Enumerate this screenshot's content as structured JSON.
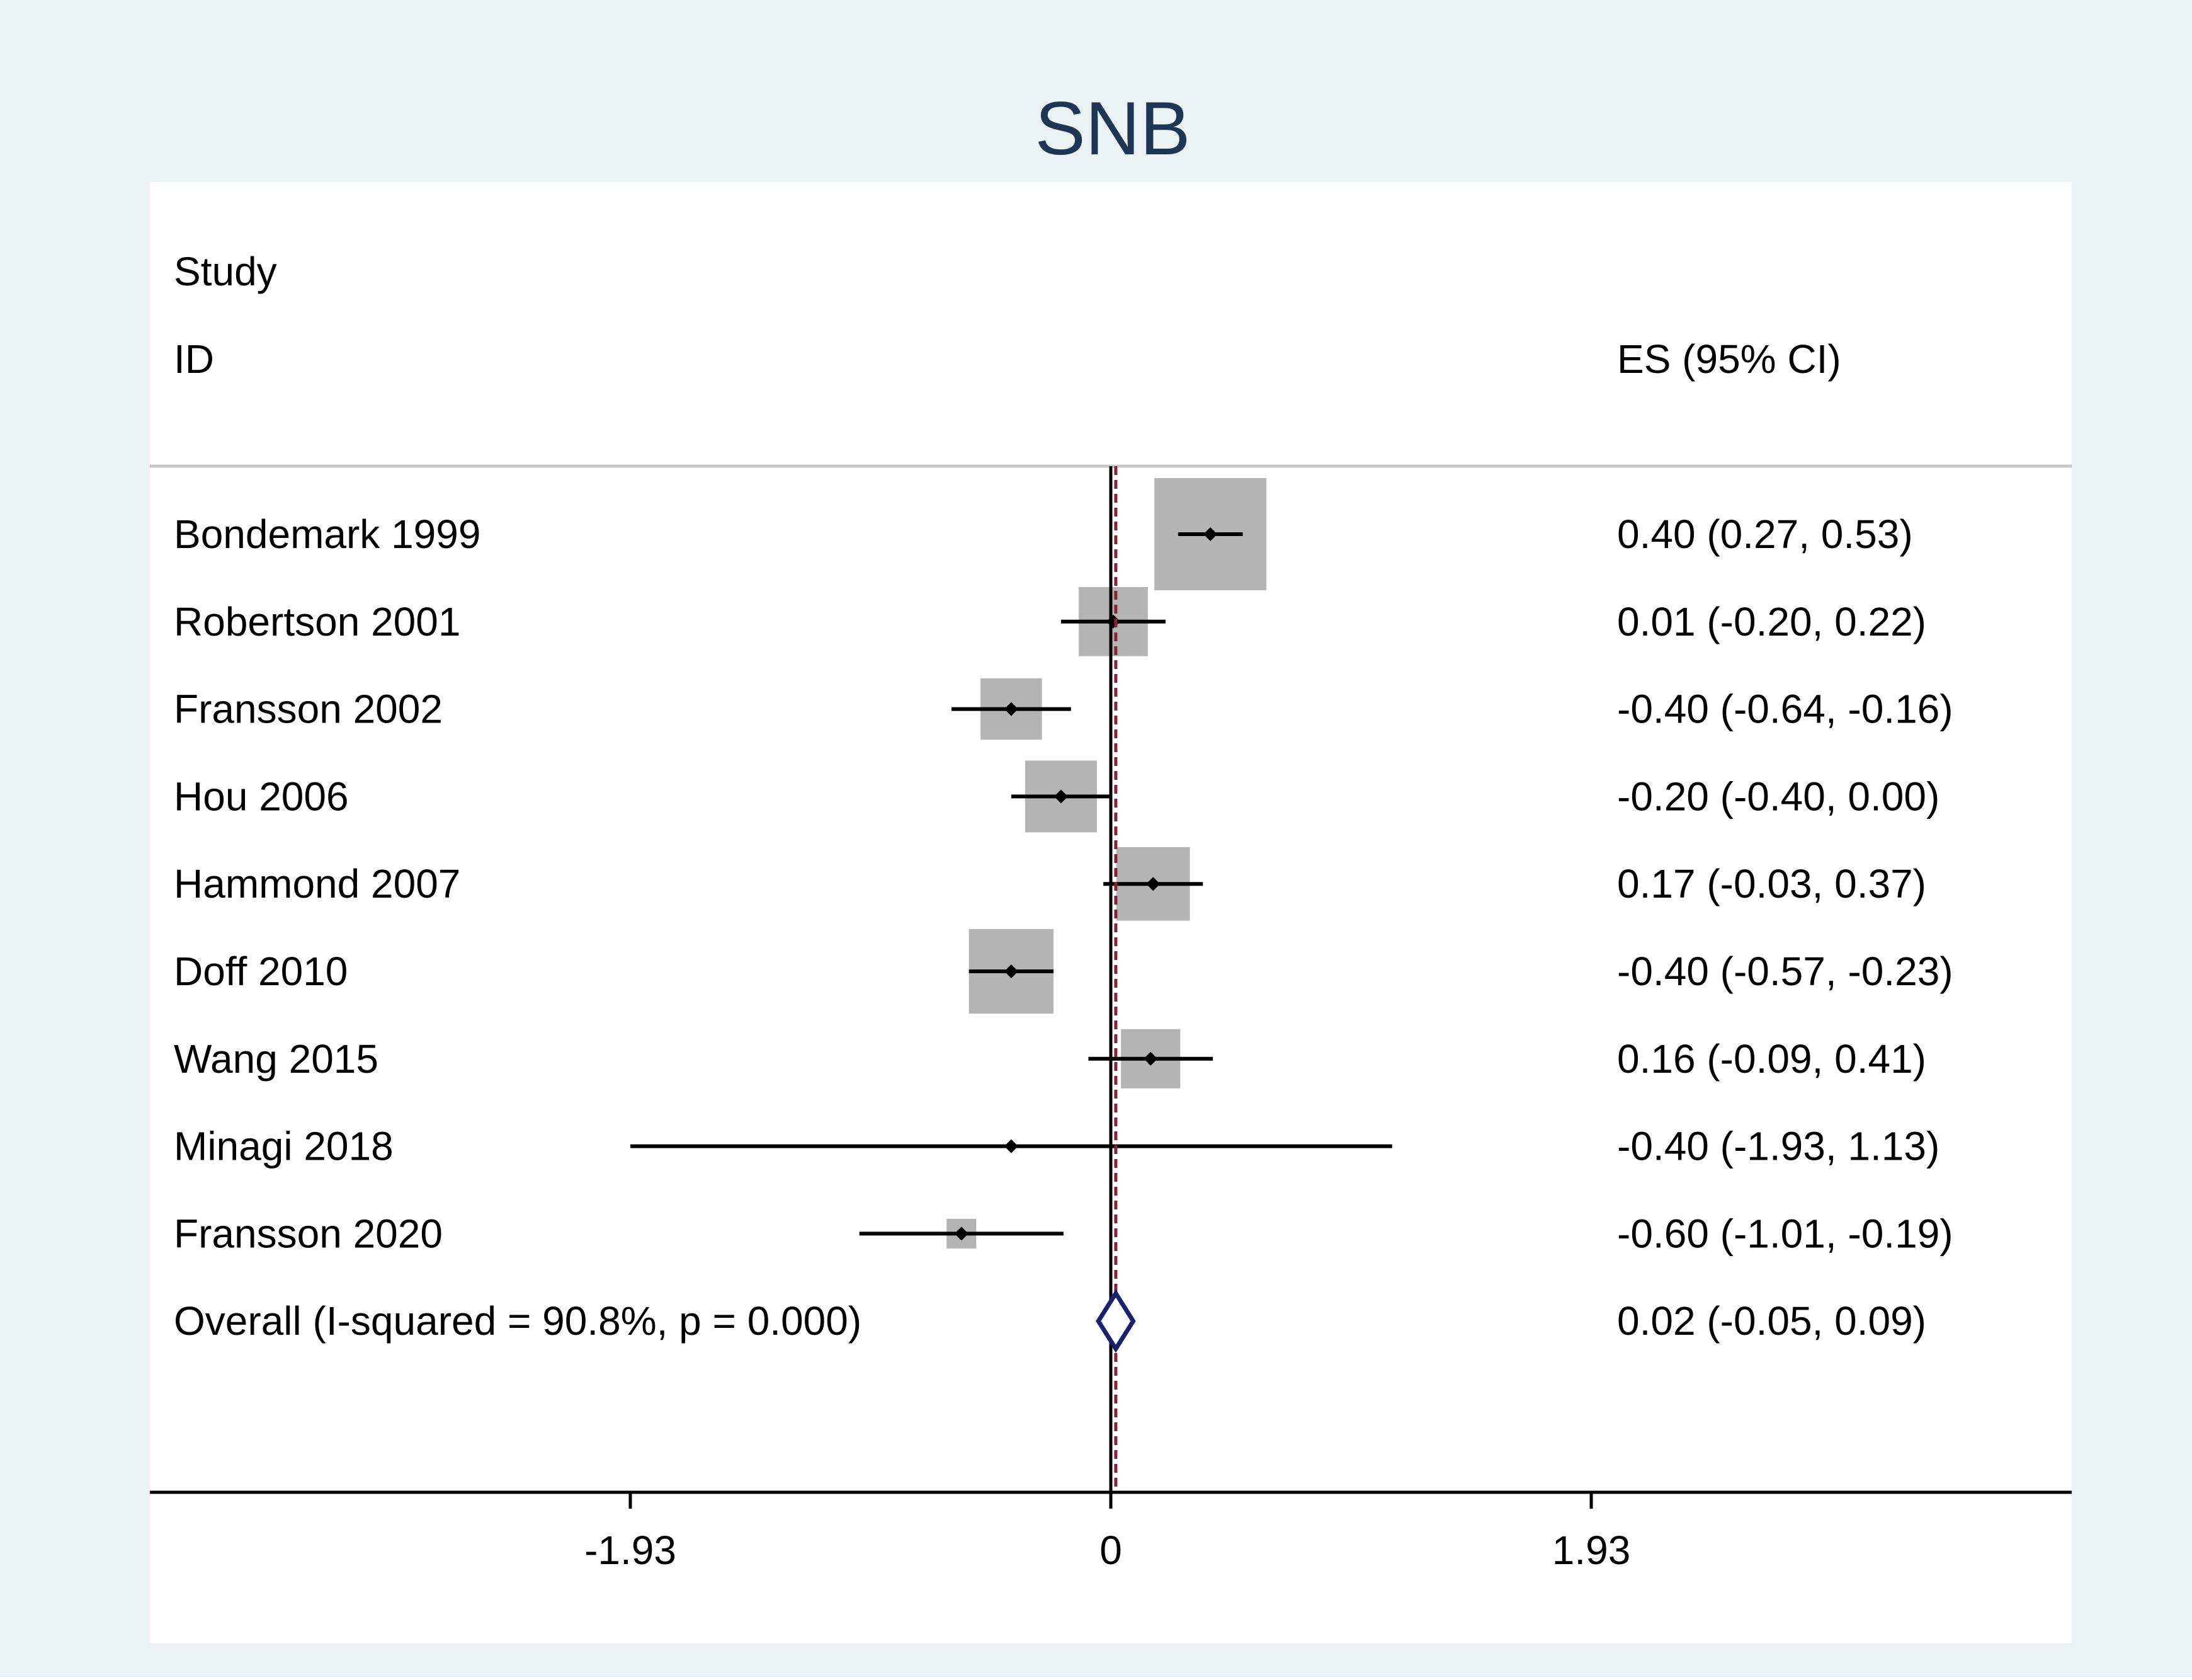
{
  "chart_data": {
    "type": "forest",
    "title": "SNB",
    "header": {
      "study_line1": "Study",
      "study_line2": "ID",
      "es_label": "ES (95% CI)"
    },
    "xlim": [
      -3.86,
      3.86
    ],
    "xticks": [
      {
        "value": -1.93,
        "label": "-1.93"
      },
      {
        "value": 0,
        "label": "0"
      },
      {
        "value": 1.93,
        "label": "1.93"
      }
    ],
    "null_line": 0,
    "overall_line": 0.02,
    "studies": [
      {
        "id": "Bondemark 1999",
        "es": 0.4,
        "lo": 0.27,
        "hi": 0.53,
        "weight": 1.0,
        "es_text": "0.40 (0.27, 0.53)"
      },
      {
        "id": "Robertson 2001",
        "es": 0.01,
        "lo": -0.2,
        "hi": 0.22,
        "weight": 0.38,
        "es_text": "0.01 (-0.20, 0.22)"
      },
      {
        "id": "Fransson 2002",
        "es": -0.4,
        "lo": -0.64,
        "hi": -0.16,
        "weight": 0.3,
        "es_text": "-0.40 (-0.64, -0.16)"
      },
      {
        "id": "Hou 2006",
        "es": -0.2,
        "lo": -0.4,
        "hi": 0.0,
        "weight": 0.41,
        "es_text": "-0.20 (-0.40, 0.00)"
      },
      {
        "id": "Hammond 2007",
        "es": 0.17,
        "lo": -0.03,
        "hi": 0.37,
        "weight": 0.43,
        "es_text": "0.17 (-0.03, 0.37)"
      },
      {
        "id": "Doff 2010",
        "es": -0.4,
        "lo": -0.57,
        "hi": -0.23,
        "weight": 0.57,
        "es_text": "-0.40 (-0.57, -0.23)"
      },
      {
        "id": "Wang 2015",
        "es": 0.16,
        "lo": -0.09,
        "hi": 0.41,
        "weight": 0.28,
        "es_text": "0.16 (-0.09, 0.41)"
      },
      {
        "id": "Minagi 2018",
        "es": -0.4,
        "lo": -1.93,
        "hi": 1.13,
        "weight": 0.0,
        "es_text": "-0.40 (-1.93, 1.13)"
      },
      {
        "id": "Fransson 2020",
        "es": -0.6,
        "lo": -1.01,
        "hi": -0.19,
        "weight": 0.07,
        "es_text": "-0.60 (-1.01, -0.19)"
      }
    ],
    "overall": {
      "label": "Overall  (I-squared = 90.8%, p = 0.000)",
      "es": 0.02,
      "lo": -0.05,
      "hi": 0.09,
      "es_text": "0.02 (-0.05, 0.09)"
    },
    "colors": {
      "background": "#eaf2f3",
      "plot_bg": "#ffffff",
      "title": "#1f3554",
      "box": "#b4b4b4",
      "line": "#000000",
      "overall_line": "#8b2332",
      "diamond": "#1a1f6e",
      "separator": "#c8c8c8"
    }
  }
}
